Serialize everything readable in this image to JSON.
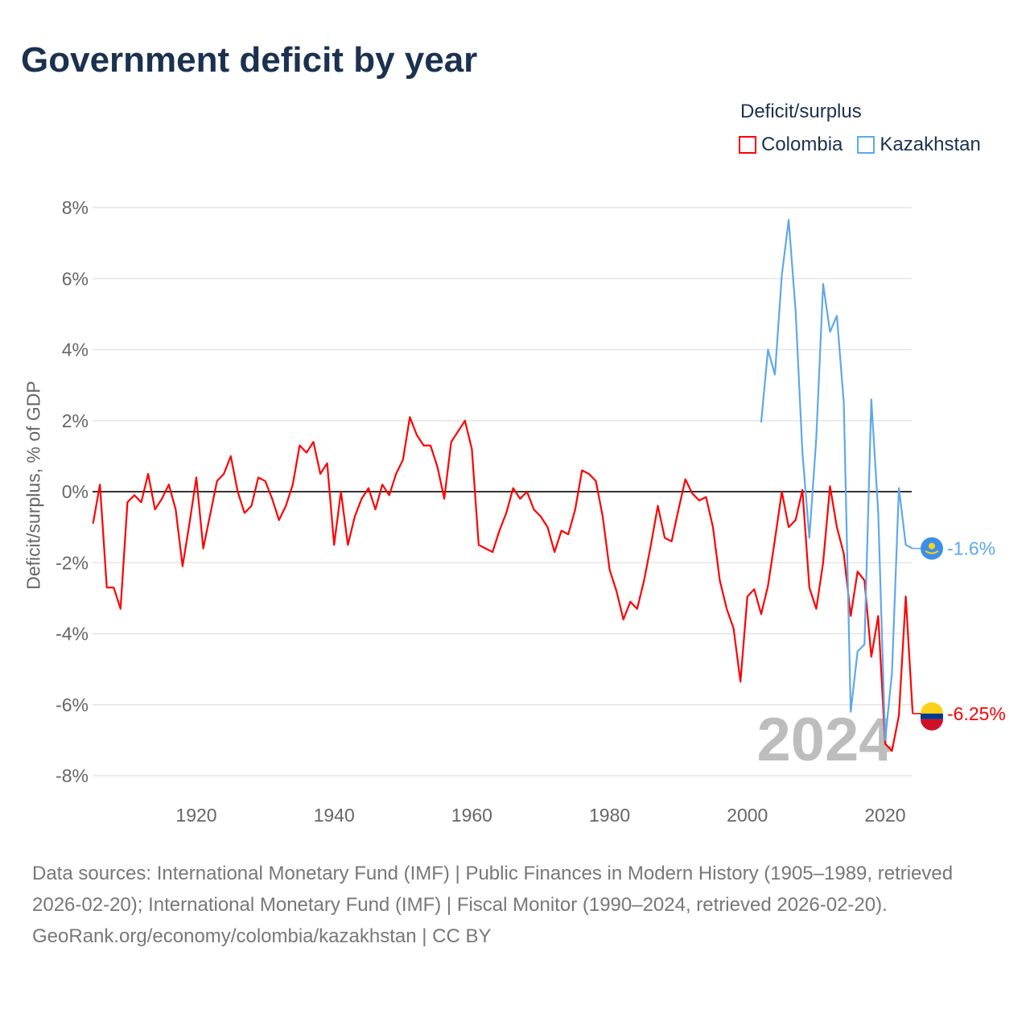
{
  "title": "Government deficit by year",
  "legend": {
    "title": "Deficit/surplus",
    "items": [
      {
        "label": "Colombia",
        "color": "#ff0000"
      },
      {
        "label": "Kazakhstan",
        "color": "#5ea8ea"
      }
    ]
  },
  "footer": {
    "sources": "Data sources: International Monetary Fund (IMF) | Public Finances in Modern History (1905–1989, retrieved 2026-02-20); International Monetary Fund (IMF) | Fiscal Monitor (1990–2024, retrieved 2026-02-20).",
    "credit": "GeoRank.org/economy/colombia/kazakhstan | CC BY"
  },
  "chart_data": {
    "type": "line",
    "title": "Government deficit by year",
    "xlabel": "",
    "ylabel": "Deficit/surplus, % of GDP",
    "xlim": [
      1905,
      2024
    ],
    "ylim": [
      -8.5,
      8
    ],
    "yticks": [
      8,
      6,
      4,
      2,
      0,
      -2,
      -4,
      -6,
      -8
    ],
    "ytick_labels": [
      "8%",
      "6%",
      "4%",
      "2%",
      "0%",
      "-2%",
      "-4%",
      "-6%",
      "-8%"
    ],
    "xticks": [
      1920,
      1940,
      1960,
      1980,
      2000,
      2020
    ],
    "xtick_labels": [
      "1920",
      "1940",
      "1960",
      "1980",
      "2000",
      "2020"
    ],
    "grid": true,
    "legend_position": "top-right",
    "year_watermark": "2024",
    "series": [
      {
        "name": "Colombia",
        "color": "#ff0000",
        "start_year": 1905,
        "end_label": "-6.25%",
        "values": [
          -0.9,
          0.2,
          -2.7,
          -2.7,
          -3.3,
          -0.3,
          -0.1,
          -0.3,
          0.5,
          -0.5,
          -0.2,
          0.2,
          -0.5,
          -2.1,
          -0.9,
          0.4,
          -1.6,
          -0.65,
          0.3,
          0.5,
          1.0,
          0,
          -0.6,
          -0.4,
          0.4,
          0.3,
          -0.2,
          -0.8,
          -0.4,
          0.2,
          1.3,
          1.1,
          1.4,
          0.5,
          0.8,
          -1.5,
          0,
          -1.5,
          -0.7,
          -0.2,
          0.1,
          -0.5,
          0.2,
          -0.1,
          0.5,
          0.9,
          2.1,
          1.6,
          1.3,
          1.3,
          0.7,
          -0.2,
          1.4,
          1.7,
          2.0,
          1.2,
          -1.5,
          -1.6,
          -1.7,
          -1.1,
          -0.6,
          0.1,
          -0.2,
          0,
          -0.5,
          -0.7,
          -1.0,
          -1.7,
          -1.1,
          -1.2,
          -0.5,
          0.6,
          0.5,
          0.3,
          -0.7,
          -2.2,
          -2.8,
          -3.6,
          -3.1,
          -3.3,
          -2.5,
          -1.5,
          -0.4,
          -1.3,
          -1.4,
          -0.5,
          0.35,
          -0.05,
          -0.25,
          -0.15,
          -1.0,
          -2.5,
          -3.3,
          -3.85,
          -5.35,
          -2.95,
          -2.75,
          -3.45,
          -2.65,
          -1.35,
          0,
          -1.0,
          -0.8,
          0.05,
          -2.7,
          -3.3,
          -2.0,
          0.15,
          -1.0,
          -1.75,
          -3.5,
          -2.25,
          -2.5,
          -4.65,
          -3.5,
          -7.1,
          -7.3,
          -6.3,
          -2.95,
          -6.25
        ]
      },
      {
        "name": "Kazakhstan",
        "color": "#5ea8ea",
        "start_year": 2002,
        "end_label": "-1.6%",
        "values": [
          1.95,
          4.0,
          3.3,
          6.1,
          7.65,
          5.1,
          1.1,
          -1.3,
          1.5,
          5.85,
          4.5,
          4.95,
          2.5,
          -6.2,
          -4.5,
          -4.3,
          2.6,
          -0.6,
          -7.0,
          -5.1,
          0.1,
          -1.5,
          -1.6
        ]
      }
    ]
  }
}
